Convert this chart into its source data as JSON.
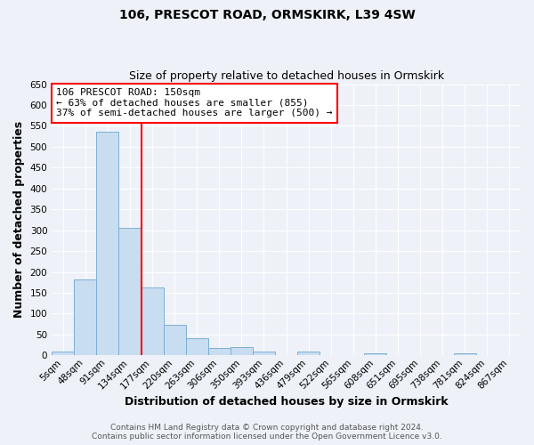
{
  "title": "106, PRESCOT ROAD, ORMSKIRK, L39 4SW",
  "subtitle": "Size of property relative to detached houses in Ormskirk",
  "xlabel": "Distribution of detached houses by size in Ormskirk",
  "ylabel": "Number of detached properties",
  "bar_labels": [
    "5sqm",
    "48sqm",
    "91sqm",
    "134sqm",
    "177sqm",
    "220sqm",
    "263sqm",
    "306sqm",
    "350sqm",
    "393sqm",
    "436sqm",
    "479sqm",
    "522sqm",
    "565sqm",
    "608sqm",
    "651sqm",
    "695sqm",
    "738sqm",
    "781sqm",
    "824sqm",
    "867sqm"
  ],
  "bar_values": [
    10,
    183,
    535,
    305,
    163,
    74,
    42,
    18,
    20,
    10,
    0,
    10,
    0,
    0,
    5,
    0,
    0,
    0,
    5,
    0,
    0
  ],
  "bar_color": "#c9ddf0",
  "bar_edge_color": "#7bafd4",
  "ylim": [
    0,
    650
  ],
  "yticks": [
    0,
    50,
    100,
    150,
    200,
    250,
    300,
    350,
    400,
    450,
    500,
    550,
    600,
    650
  ],
  "vline_color": "red",
  "annotation_title": "106 PRESCOT ROAD: 150sqm",
  "annotation_line1": "← 63% of detached houses are smaller (855)",
  "annotation_line2": "37% of semi-detached houses are larger (500) →",
  "annotation_box_color": "white",
  "annotation_box_edge": "red",
  "footer1": "Contains HM Land Registry data © Crown copyright and database right 2024.",
  "footer2": "Contains public sector information licensed under the Open Government Licence v3.0.",
  "background_color": "#eef2f8",
  "grid_color": "white",
  "title_fontsize": 10,
  "subtitle_fontsize": 9,
  "axis_label_fontsize": 9,
  "tick_fontsize": 7.5,
  "footer_fontsize": 6.5
}
